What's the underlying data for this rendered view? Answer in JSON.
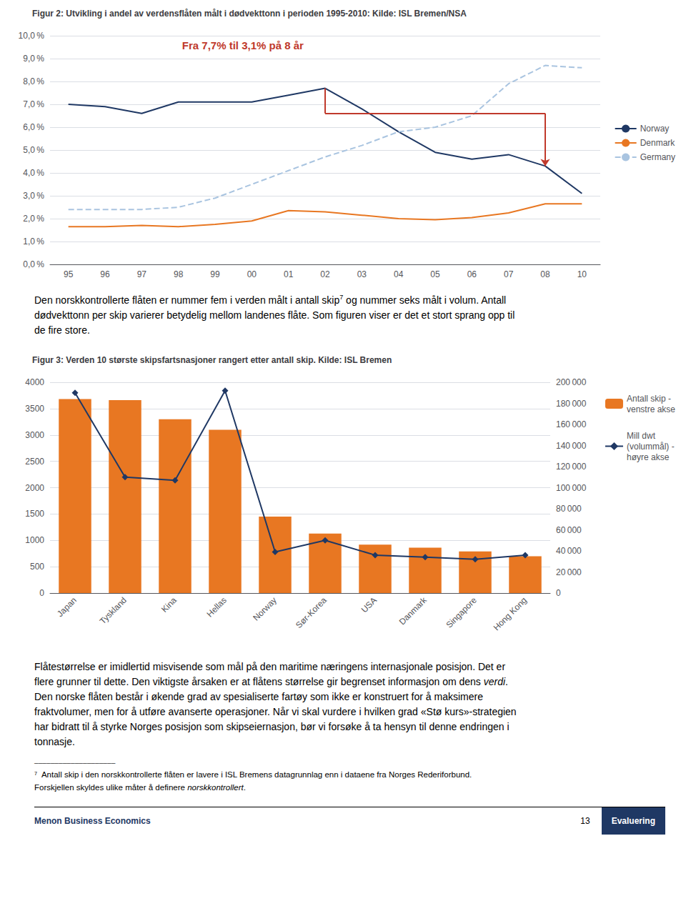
{
  "chart_data": [
    {
      "type": "line",
      "title": "Figur 2: Utvikling i andel av verdensflåten målt i dødvekttonn i perioden 1995-2010: Kilde: ISL Bremen/NSA",
      "categories": [
        "95",
        "96",
        "97",
        "98",
        "99",
        "00",
        "01",
        "02",
        "03",
        "04",
        "05",
        "06",
        "07",
        "08",
        "10"
      ],
      "series": [
        {
          "name": "Norway",
          "color": "#1F3864",
          "line_style": "solid",
          "values": [
            7.0,
            6.9,
            6.6,
            7.1,
            7.1,
            7.1,
            7.4,
            7.7,
            6.8,
            5.8,
            4.9,
            4.6,
            4.8,
            4.3,
            3.1
          ]
        },
        {
          "name": "Denmark",
          "color": "#E87722",
          "line_style": "solid",
          "values": [
            1.65,
            1.65,
            1.7,
            1.65,
            1.75,
            1.9,
            2.35,
            2.3,
            2.15,
            2.0,
            1.95,
            2.05,
            2.25,
            2.65,
            2.65
          ]
        },
        {
          "name": "Germany",
          "color": "#A9C4E0",
          "line_style": "dashed",
          "values": [
            2.4,
            2.4,
            2.4,
            2.5,
            2.9,
            3.5,
            4.1,
            4.7,
            5.2,
            5.8,
            6.0,
            6.5,
            7.9,
            8.7,
            8.6
          ]
        }
      ],
      "ylim": [
        0,
        10
      ],
      "yticks": [
        {
          "value": 0,
          "label": "0,0 %"
        },
        {
          "value": 1,
          "label": "1,0 %"
        },
        {
          "value": 2,
          "label": "2,0 %"
        },
        {
          "value": 3,
          "label": "3,0 %"
        },
        {
          "value": 4,
          "label": "4,0 %"
        },
        {
          "value": 5,
          "label": "5,0 %"
        },
        {
          "value": 6,
          "label": "6,0 %"
        },
        {
          "value": 7,
          "label": "7,0 %"
        },
        {
          "value": 8,
          "label": "8,0 %"
        },
        {
          "value": 9,
          "label": "9,0 %"
        },
        {
          "value": 10,
          "label": "10,0 %"
        }
      ],
      "grid": true,
      "legend": "right",
      "annotations": [
        {
          "text": "Fra 7,7% til 3,1% på 8 år",
          "color": "#C0392B",
          "from": "02",
          "to": "08",
          "y": 6.6
        }
      ]
    },
    {
      "type": "bar",
      "title": "Figur 3: Verden 10 største skipsfartsnasjoner rangert etter antall skip. Kilde: ISL Bremen",
      "categories": [
        "Japan",
        "Tyskland",
        "Kina",
        "Hellas",
        "Norway",
        "Sør-Korea",
        "USA",
        "Danmark",
        "Singapore",
        "Hong Kong"
      ],
      "series": [
        {
          "name": "Antall skip -\nvenstre akse",
          "type": "bar",
          "color": "#E87722",
          "values": [
            3680,
            3660,
            3300,
            3100,
            1450,
            1130,
            920,
            860,
            790,
            700
          ]
        },
        {
          "name": "Mill dwt\n(volummål) -\nhøyre akse",
          "type": "line",
          "axis": "y2",
          "color": "#1F3864",
          "marker": "diamond",
          "values": [
            190000,
            110000,
            107000,
            192000,
            39000,
            50000,
            36000,
            34000,
            32000,
            36000
          ]
        }
      ],
      "ylim": [
        0,
        4000
      ],
      "yticks": [
        0,
        500,
        1000,
        1500,
        2000,
        2500,
        3000,
        3500,
        4000
      ],
      "y2lim": [
        0,
        200000
      ],
      "y2ticks": [
        0,
        {
          "value": 20000,
          "label": "20 000"
        },
        {
          "value": 40000,
          "label": "40 000"
        },
        {
          "value": 60000,
          "label": "60 000"
        },
        {
          "value": 80000,
          "label": "80 000"
        },
        {
          "value": 100000,
          "label": "100 000"
        },
        {
          "value": 120000,
          "label": "120 000"
        },
        {
          "value": 140000,
          "label": "140 000"
        },
        {
          "value": 160000,
          "label": "160 000"
        },
        {
          "value": 180000,
          "label": "180 000"
        },
        {
          "value": 200000,
          "label": "200 000"
        }
      ],
      "grid": true,
      "legend": "upper right"
    }
  ],
  "paragraph_1": [
    [
      {
        "text": "Den norskkontrollerte flåten er nummer fem i verden målt i antall skip"
      },
      {
        "text": "7",
        "superscript": true
      },
      {
        "text": " og nummer seks målt i volum. Antall"
      }
    ],
    [
      {
        "text": "dødvekttonn per skip varierer betydelig mellom landenes flåte. Som figuren viser er det et stort sprang opp til"
      }
    ],
    [
      {
        "text": "de fire store."
      }
    ]
  ],
  "paragraph_2": [
    [
      {
        "text": "Flåtestørrelse er imidlertid misvisende som mål på den maritime næringens internasjonale posisjon. Det er"
      }
    ],
    [
      {
        "text": "flere grunner til dette. Den viktigste årsaken er at flåtens størrelse gir begrenset informasjon om dens "
      },
      {
        "text": "verdi",
        "italic": true
      },
      {
        "text": "."
      }
    ],
    [
      {
        "text": "Den norske flåten består i økende grad av spesialiserte fartøy som ikke er konstruert for å maksimere"
      }
    ],
    [
      {
        "text": "fraktvolumer, men for å utføre avanserte operasjoner. Når vi skal vurdere i hvilken grad «Stø kurs»-strategien"
      }
    ],
    [
      {
        "text": "har bidratt til å styrke Norges posisjon som skipseiernasjon, bør vi forsøke å ta hensyn til denne endringen i"
      }
    ],
    [
      {
        "text": "tonnasje."
      }
    ]
  ],
  "footnote_rule": "────────────────────",
  "footnote": [
    [
      {
        "text": "⁷  Antall skip i den norskkontrollerte flåten er lavere i ISL Bremens datagrunnlag enn i dataene fra Norges Rederiforbund."
      }
    ],
    [
      {
        "text": "Forskjellen skyldes ulike måter å definere "
      },
      {
        "text": "norskkontrollert",
        "italic": true
      },
      {
        "text": "."
      }
    ]
  ],
  "footer": {
    "left": "Menon Business Economics",
    "page": "13",
    "right": "Evaluering",
    "color": "#1F3864"
  }
}
